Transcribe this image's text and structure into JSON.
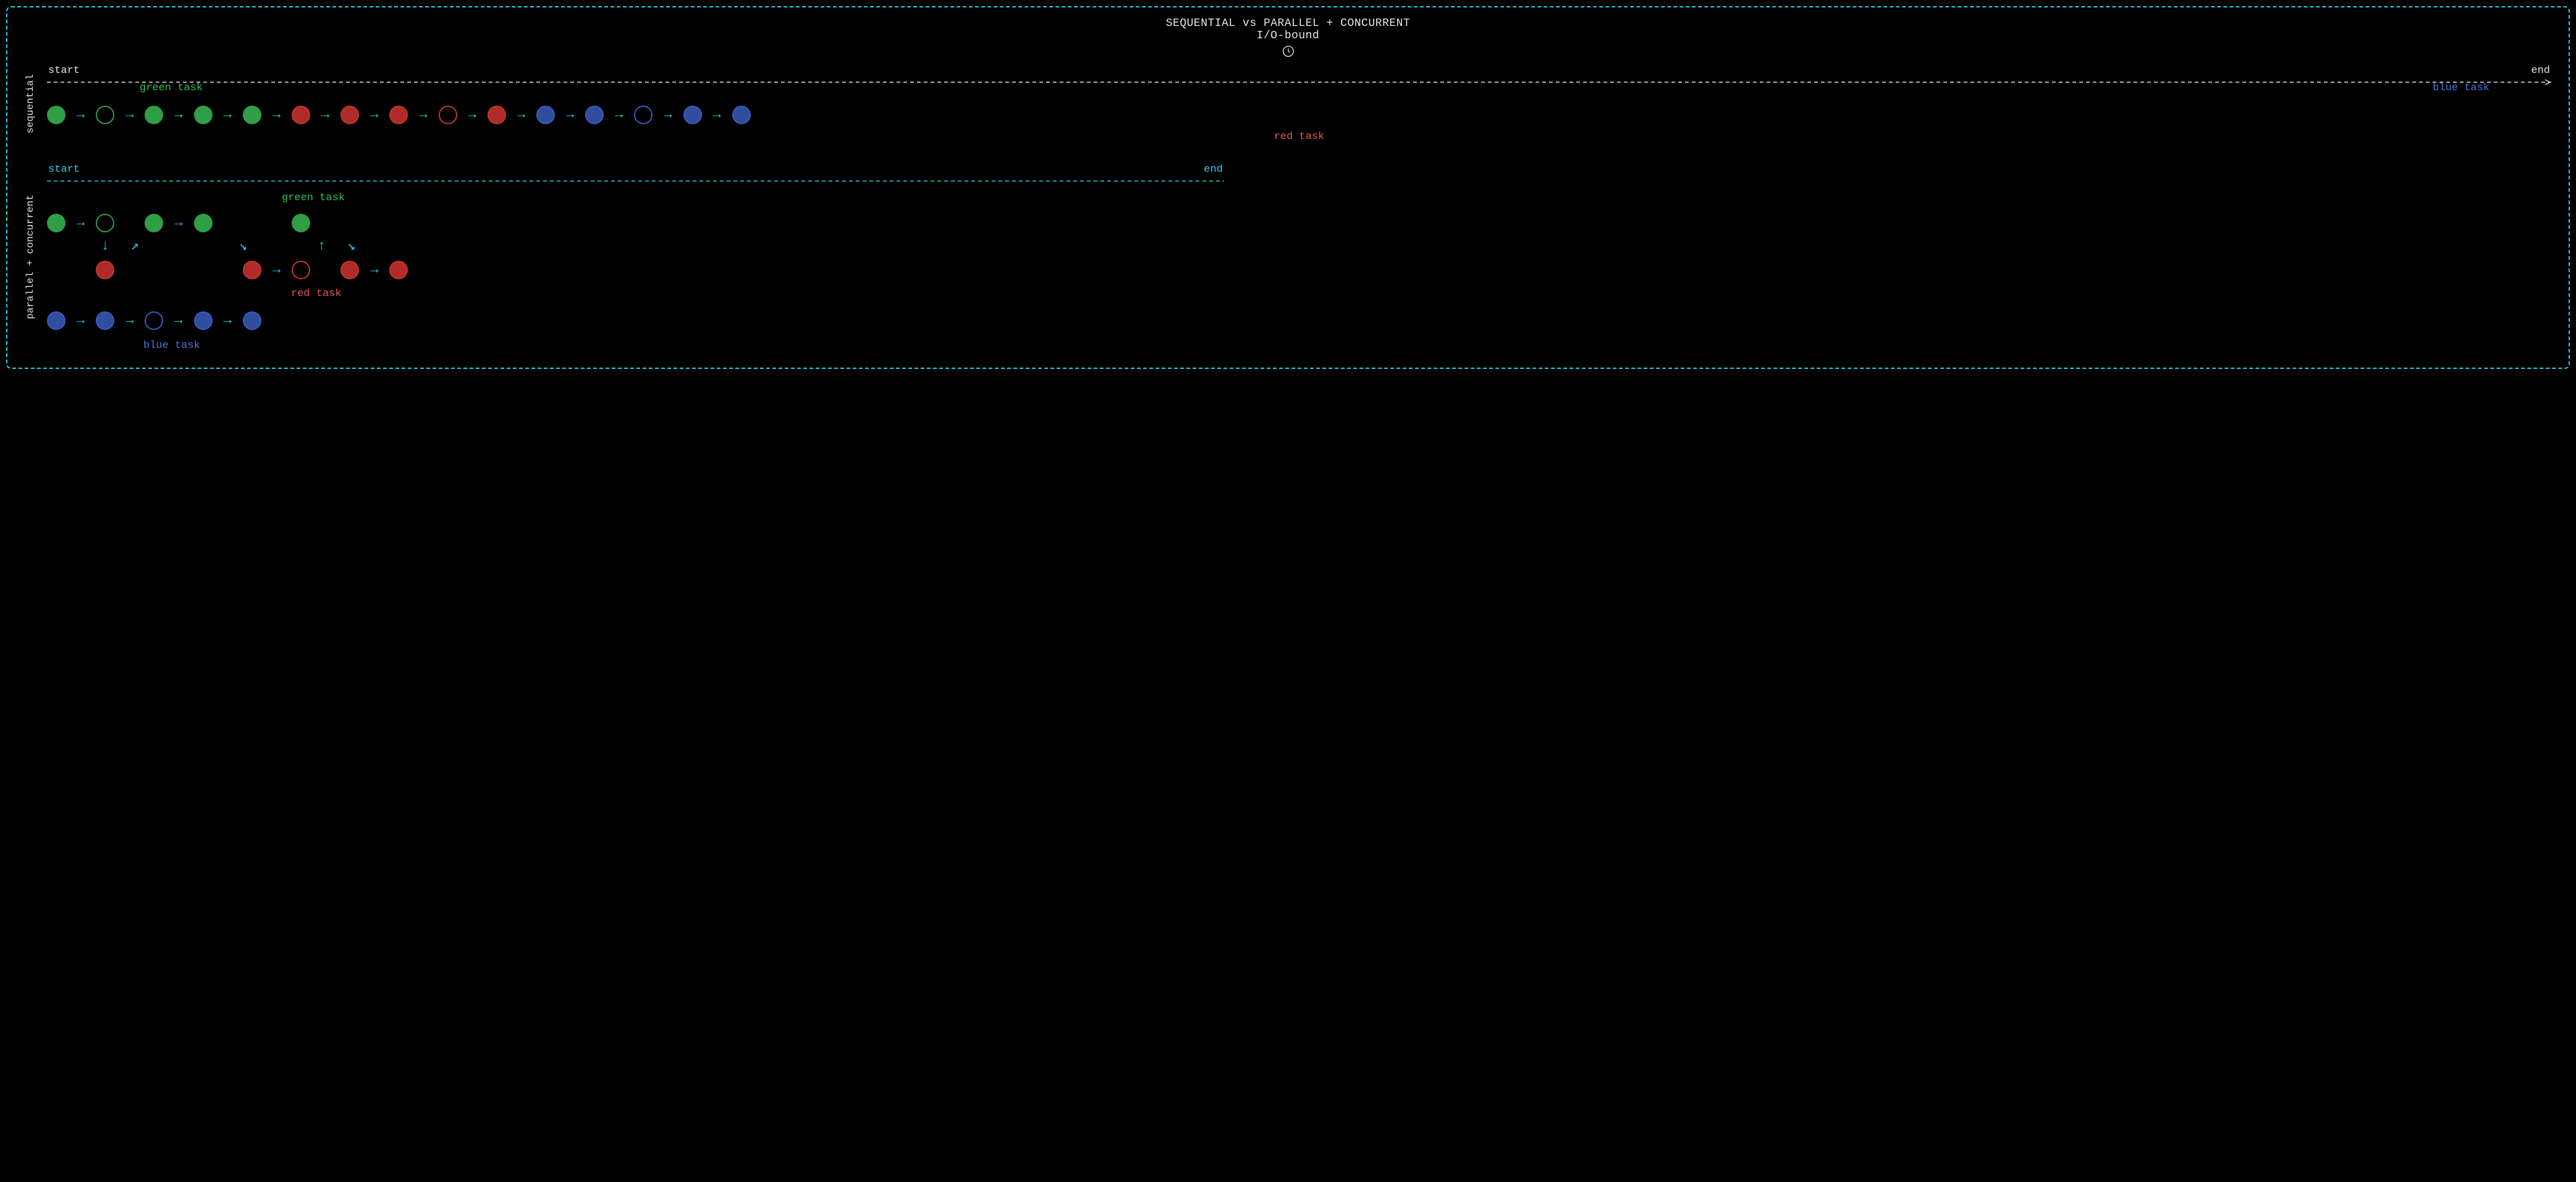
{
  "layout": {
    "background_color": "#000000",
    "frame_border_color": "#22d3ee",
    "font_family": "monospace"
  },
  "colors": {
    "title_text": "#e5e5e5",
    "timeline_white": "#e5e5e5",
    "timeline_cyan": "#22d3ee",
    "arrow_cyan": "#22d3ee",
    "green_fill": "#2f9e44",
    "green_stroke": "#2f9e44",
    "red_fill": "#b02a2a",
    "red_stroke": "#c0392b",
    "blue_fill": "#2f4e9e",
    "blue_stroke": "#3b5bbf",
    "label_green": "#2fbf55",
    "label_red": "#e05a4f",
    "label_blue": "#4a72e0",
    "vlabel_color": "#e5e5e5"
  },
  "title": {
    "line1": "SEQUENTIAL vs PARALLEL + CONCURRENT",
    "line2": "I/O-bound"
  },
  "sequential": {
    "vlabel": "sequential",
    "start_label": "start",
    "end_label": "end",
    "green_label": "green task",
    "red_label": "red task",
    "blue_label": "blue task",
    "cells": [
      {
        "t": "dot",
        "color": "green",
        "fill": true
      },
      {
        "t": "arr",
        "dir": "right"
      },
      {
        "t": "dot",
        "color": "green",
        "fill": false
      },
      {
        "t": "arr",
        "dir": "right"
      },
      {
        "t": "dot",
        "color": "green",
        "fill": true
      },
      {
        "t": "arr",
        "dir": "right"
      },
      {
        "t": "dot",
        "color": "green",
        "fill": true
      },
      {
        "t": "arr",
        "dir": "right"
      },
      {
        "t": "dot",
        "color": "green",
        "fill": true
      },
      {
        "t": "arr",
        "dir": "right"
      },
      {
        "t": "dot",
        "color": "red",
        "fill": true
      },
      {
        "t": "arr",
        "dir": "right"
      },
      {
        "t": "dot",
        "color": "red",
        "fill": true
      },
      {
        "t": "arr",
        "dir": "right"
      },
      {
        "t": "dot",
        "color": "red",
        "fill": true
      },
      {
        "t": "arr",
        "dir": "right"
      },
      {
        "t": "dot",
        "color": "red",
        "fill": false
      },
      {
        "t": "arr",
        "dir": "right"
      },
      {
        "t": "dot",
        "color": "red",
        "fill": true
      },
      {
        "t": "arr",
        "dir": "right"
      },
      {
        "t": "dot",
        "color": "blue",
        "fill": true
      },
      {
        "t": "arr",
        "dir": "right"
      },
      {
        "t": "dot",
        "color": "blue",
        "fill": true
      },
      {
        "t": "arr",
        "dir": "right"
      },
      {
        "t": "dot",
        "color": "blue",
        "fill": false
      },
      {
        "t": "arr",
        "dir": "right"
      },
      {
        "t": "dot",
        "color": "blue",
        "fill": true
      },
      {
        "t": "arr",
        "dir": "right"
      },
      {
        "t": "dot",
        "color": "blue",
        "fill": true
      }
    ]
  },
  "parallel": {
    "vlabel": "parallel + concurrent",
    "start_label": "start",
    "end_label": "end",
    "green_label": "green task",
    "red_label": "red task",
    "blue_label": "blue task",
    "timeline_width_pct": 47,
    "green_lane": [
      {
        "t": "dot",
        "color": "green",
        "fill": true
      },
      {
        "t": "arr",
        "dir": "right"
      },
      {
        "t": "dot",
        "color": "green",
        "fill": false
      },
      {
        "t": "sp"
      },
      {
        "t": "dot",
        "color": "green",
        "fill": true
      },
      {
        "t": "arr",
        "dir": "right"
      },
      {
        "t": "dot",
        "color": "green",
        "fill": true
      },
      {
        "t": "sp"
      },
      {
        "t": "sp-dot"
      },
      {
        "t": "sp"
      },
      {
        "t": "dot",
        "color": "green",
        "fill": true
      }
    ],
    "interleave1": [
      {
        "t": "sp-dot"
      },
      {
        "t": "sp"
      },
      {
        "t": "arr",
        "dir": "down"
      },
      {
        "t": "arr",
        "dir": "upright"
      },
      {
        "t": "sp-dot"
      },
      {
        "t": "sp"
      },
      {
        "t": "sp-dot"
      },
      {
        "t": "arr",
        "dir": "downright"
      },
      {
        "t": "sp-dot"
      },
      {
        "t": "sp"
      },
      {
        "t": "arr",
        "dir": "up"
      },
      {
        "t": "arr",
        "dir": "downright"
      }
    ],
    "red_lane": [
      {
        "t": "sp-dot"
      },
      {
        "t": "sp"
      },
      {
        "t": "dot",
        "color": "red",
        "fill": true
      },
      {
        "t": "sp"
      },
      {
        "t": "sp-dot"
      },
      {
        "t": "sp"
      },
      {
        "t": "sp-dot"
      },
      {
        "t": "sp"
      },
      {
        "t": "dot",
        "color": "red",
        "fill": true
      },
      {
        "t": "arr",
        "dir": "right"
      },
      {
        "t": "dot",
        "color": "red",
        "fill": false
      },
      {
        "t": "sp"
      },
      {
        "t": "dot",
        "color": "red",
        "fill": true
      },
      {
        "t": "arr",
        "dir": "right"
      },
      {
        "t": "dot",
        "color": "red",
        "fill": true
      }
    ],
    "blue_lane": [
      {
        "t": "dot",
        "color": "blue",
        "fill": true
      },
      {
        "t": "arr",
        "dir": "right"
      },
      {
        "t": "dot",
        "color": "blue",
        "fill": true
      },
      {
        "t": "arr",
        "dir": "right"
      },
      {
        "t": "dot",
        "color": "blue",
        "fill": false
      },
      {
        "t": "arr",
        "dir": "right"
      },
      {
        "t": "dot",
        "color": "blue",
        "fill": true
      },
      {
        "t": "arr",
        "dir": "right"
      },
      {
        "t": "dot",
        "color": "blue",
        "fill": true
      }
    ]
  },
  "arrows": {
    "right": "→",
    "down": "↓",
    "up": "↑",
    "upright": "↗",
    "downright": "↘"
  }
}
